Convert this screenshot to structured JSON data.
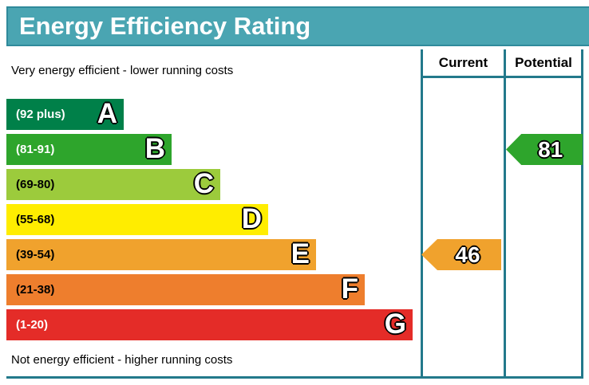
{
  "title": "Energy Efficiency Rating",
  "header": {
    "current": "Current",
    "potential": "Potential"
  },
  "top_note": "Very energy efficient - lower running costs",
  "bottom_note": "Not energy efficient - higher running costs",
  "colors": {
    "title_bar_bg": "#4aa5b2",
    "title_bar_border": "#2f8a9b",
    "grid_line": "#23798b",
    "page_bg": "#ffffff"
  },
  "chart_data": {
    "type": "bar",
    "subtype": "epc-energy-efficiency-rating",
    "bands": [
      {
        "letter": "A",
        "range": "(92 plus)",
        "min": 92,
        "max": 100,
        "color": "#008049",
        "text_color": "#ffffff"
      },
      {
        "letter": "B",
        "range": "(81-91)",
        "min": 81,
        "max": 91,
        "color": "#2ea52c",
        "text_color": "#ffffff"
      },
      {
        "letter": "C",
        "range": "(69-80)",
        "min": 69,
        "max": 80,
        "color": "#9ccb3c",
        "text_color": "#000000"
      },
      {
        "letter": "D",
        "range": "(55-68)",
        "min": 55,
        "max": 68,
        "color": "#ffed00",
        "text_color": "#000000"
      },
      {
        "letter": "E",
        "range": "(39-54)",
        "min": 39,
        "max": 54,
        "color": "#f0a22d",
        "text_color": "#000000"
      },
      {
        "letter": "F",
        "range": "(21-38)",
        "min": 21,
        "max": 38,
        "color": "#ee7e2d",
        "text_color": "#000000"
      },
      {
        "letter": "G",
        "range": "(1-20)",
        "min": 1,
        "max": 20,
        "color": "#e42c28",
        "text_color": "#ffffff"
      }
    ],
    "current": {
      "value": 46,
      "band": "E",
      "color": "#f0a22d"
    },
    "potential": {
      "value": 81,
      "band": "B",
      "color": "#2ea52c"
    }
  }
}
